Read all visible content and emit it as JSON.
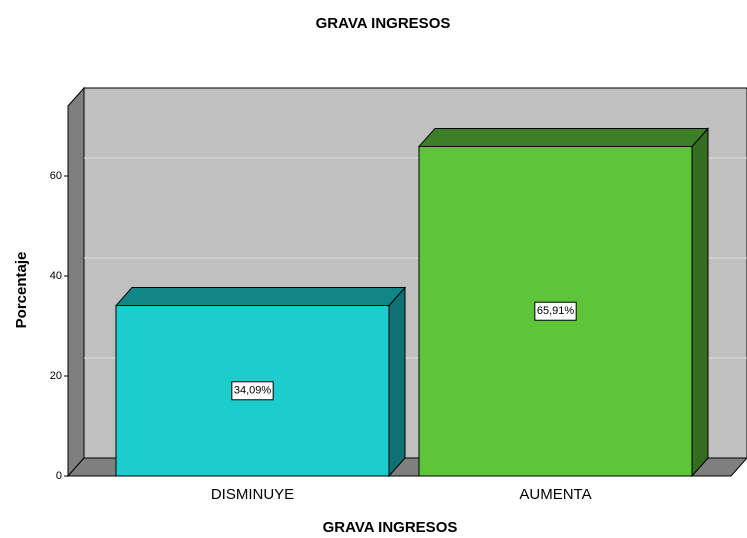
{
  "chart_data": {
    "type": "bar",
    "title": "GRAVA INGRESOS",
    "x_label": "GRAVA INGRESOS",
    "y_label": "Porcentaje",
    "categories": [
      "DISMINUYE",
      "AUMENTA"
    ],
    "values": [
      34.09,
      65.91
    ],
    "value_labels": [
      "34,09%",
      "65,91%"
    ],
    "colors": [
      "#1ccdcd",
      "#5ec43a"
    ],
    "ylim": [
      0,
      74
    ],
    "yticks": [
      0,
      20,
      40,
      60
    ],
    "grid": true
  }
}
